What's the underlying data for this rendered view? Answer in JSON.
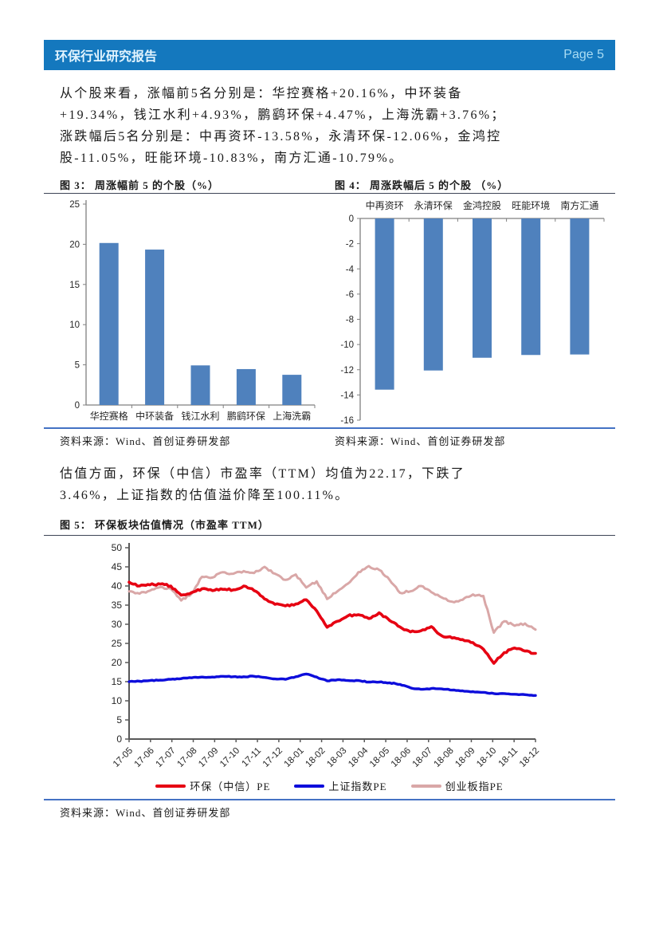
{
  "header": {
    "title": "环保行业研究报告",
    "page": "Page 5"
  },
  "paragraphs": [
    "从个股来看，涨幅前5名分别是：华控赛格+20.16%，中环装备+19.34%，钱江水利+4.93%，鹏鹞环保+4.47%，上海洗霸+3.76%；涨跌幅后5名分别是：中再资环-13.58%，永清环保-12.06%，金鸿控股-11.05%，旺能环境-10.83%，南方汇通-10.79%。",
    "估值方面，环保（中信）市盈率（TTM）均值为22.17，下跌了3.46%，上证指数的估值溢价降至100.11%。"
  ],
  "source_label": "资料来源：Wind、首创证券研发部",
  "colors": {
    "header_bar": "#1478BE",
    "header_title": "#E2F4FE",
    "page_number": "#A9DCF3",
    "bar_fill": "#4F81BD",
    "rule_dark": "#3D4456",
    "rule_blue": "#4472C4",
    "axis_gray": "#808080",
    "axis_dark": "#595959",
    "tick_text": "#262626",
    "line_red": "#E60012",
    "line_blue": "#0D0DDB",
    "line_pink": "#D9A7A7"
  },
  "chart_data": [
    {
      "id": "fig3",
      "type": "bar",
      "title": "图 3： 周涨幅前 5 的个股（%）",
      "categories": [
        "华控赛格",
        "中环装备",
        "钱江水利",
        "鹏鹞环保",
        "上海洗霸"
      ],
      "values": [
        20.16,
        19.34,
        4.93,
        4.47,
        3.76
      ],
      "ylim": [
        0,
        25
      ],
      "ytick_step": 5,
      "grid": false,
      "legend": "none",
      "category_labels_position": "bottom"
    },
    {
      "id": "fig4",
      "type": "bar",
      "title": "图 4： 周涨跌幅后 5 的个股 （%）",
      "categories": [
        "中再资环",
        "永清环保",
        "金鸿控股",
        "旺能环境",
        "南方汇通"
      ],
      "values": [
        -13.58,
        -12.06,
        -11.05,
        -10.83,
        -10.79
      ],
      "ylim": [
        -16,
        0
      ],
      "ytick_step": 2,
      "grid": false,
      "legend": "none",
      "category_labels_position": "top"
    },
    {
      "id": "fig5",
      "type": "line",
      "title": "图 5： 环保板块估值情况（市盈率 TTM）",
      "x_labels": [
        "17-05",
        "17-06",
        "17-07",
        "17-08",
        "17-09",
        "17-10",
        "17-11",
        "17-12",
        "18-01",
        "18-02",
        "18-03",
        "18-04",
        "18-05",
        "18-06",
        "18-07",
        "18-08",
        "18-09",
        "18-10",
        "18-11",
        "18-12"
      ],
      "points_per_label": 2,
      "ylim": [
        0,
        50
      ],
      "ytick_step": 5,
      "grid": false,
      "legend_position": "bottom",
      "series": [
        {
          "name": "环保（中信）PE",
          "color": "#E60012",
          "values": [
            41.0,
            40.0,
            40.3,
            40.5,
            40.0,
            37.6,
            38.3,
            39.3,
            38.8,
            39.1,
            39.0,
            40.0,
            38.8,
            36.6,
            35.2,
            34.8,
            35.3,
            36.4,
            33.5,
            29.2,
            30.8,
            32.2,
            32.5,
            31.5,
            33.0,
            31.0,
            29.3,
            28.0,
            28.3,
            29.4,
            27.0,
            26.4,
            26.0,
            25.2,
            23.5,
            19.8,
            22.6,
            23.8,
            23.0,
            22.4
          ]
        },
        {
          "name": "上证指数PE",
          "color": "#0D0DDB",
          "values": [
            15.0,
            15.1,
            15.3,
            15.4,
            15.6,
            15.8,
            16.0,
            16.2,
            16.2,
            16.4,
            16.3,
            16.3,
            16.4,
            16.1,
            15.7,
            15.6,
            16.3,
            17.0,
            16.2,
            15.2,
            15.5,
            15.3,
            15.3,
            14.9,
            14.9,
            14.7,
            14.3,
            13.4,
            13.0,
            13.2,
            13.1,
            12.8,
            12.6,
            12.4,
            12.2,
            11.9,
            11.9,
            11.7,
            11.6,
            11.4
          ]
        },
        {
          "name": "创业板指PE",
          "color": "#D9A7A7",
          "values": [
            38.6,
            38.0,
            38.8,
            39.7,
            39.3,
            36.2,
            38.0,
            42.4,
            42.2,
            43.6,
            43.2,
            43.9,
            43.4,
            45.0,
            43.2,
            41.6,
            43.0,
            39.6,
            41.2,
            36.6,
            38.6,
            40.6,
            43.6,
            45.2,
            44.2,
            41.6,
            38.2,
            38.6,
            40.0,
            38.4,
            37.0,
            35.9,
            36.4,
            37.8,
            37.4,
            27.8,
            30.8,
            29.6,
            30.2,
            28.6
          ]
        }
      ]
    }
  ]
}
